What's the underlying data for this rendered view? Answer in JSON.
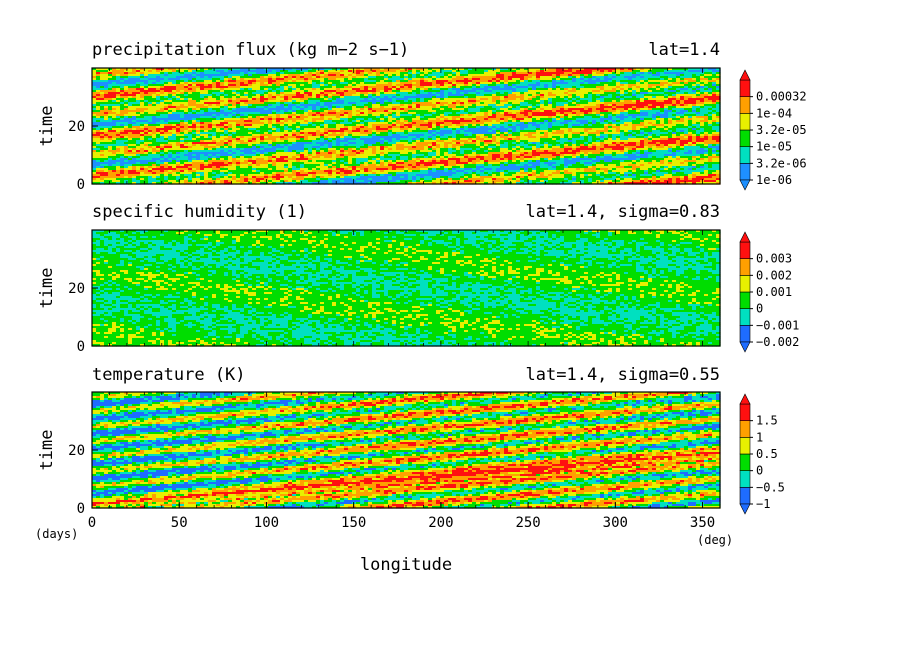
{
  "chart_data": [
    {
      "type": "heatmap",
      "title": "precipitation flux (kg m−2 s−1)",
      "subtitle": "lat=1.4",
      "ylabel": "time",
      "xlim": [
        0,
        360
      ],
      "ylim": [
        0,
        40
      ],
      "y_ticks": [
        "0",
        "20"
      ],
      "colorbar": [
        "1e-06",
        "3.2e-06",
        "1e-05",
        "3.2e-05",
        "1e-04",
        "0.00032"
      ],
      "colors": [
        "#1e90ff",
        "#00e0c0",
        "#00dd00",
        "#e8f000",
        "#ffa000",
        "#ff1010"
      ],
      "pattern": "streaks"
    },
    {
      "type": "heatmap",
      "title": "specific humidity (1)",
      "subtitle": "lat=1.4, sigma=0.83",
      "ylabel": "time",
      "xlim": [
        0,
        360
      ],
      "ylim": [
        0,
        40
      ],
      "y_ticks": [
        "0",
        "20"
      ],
      "colorbar": [
        "−0.002",
        "−0.001",
        "0",
        "0.001",
        "0.002",
        "0.003"
      ],
      "colors": [
        "#1e6cff",
        "#00e0c0",
        "#00dd00",
        "#e8f000",
        "#ffa000",
        "#ff1010"
      ],
      "pattern": "mostly-green"
    },
    {
      "type": "heatmap",
      "title": "temperature (K)",
      "subtitle": "lat=1.4, sigma=0.55",
      "ylabel": "time",
      "xlim": [
        0,
        360
      ],
      "ylim": [
        0,
        40
      ],
      "y_ticks": [
        "0",
        "20"
      ],
      "x_ticks": [
        "0",
        "50",
        "100",
        "150",
        "200",
        "250",
        "300",
        "350"
      ],
      "colorbar": [
        "−1",
        "−0.5",
        "0",
        "0.5",
        "1",
        "1.5"
      ],
      "colors": [
        "#1e6cff",
        "#00e0c0",
        "#00dd00",
        "#e8f000",
        "#ffa000",
        "#ff1010"
      ],
      "pattern": "waves"
    }
  ],
  "xlabel": "longitude",
  "x_unit": "(deg)",
  "y_unit": "(days)"
}
